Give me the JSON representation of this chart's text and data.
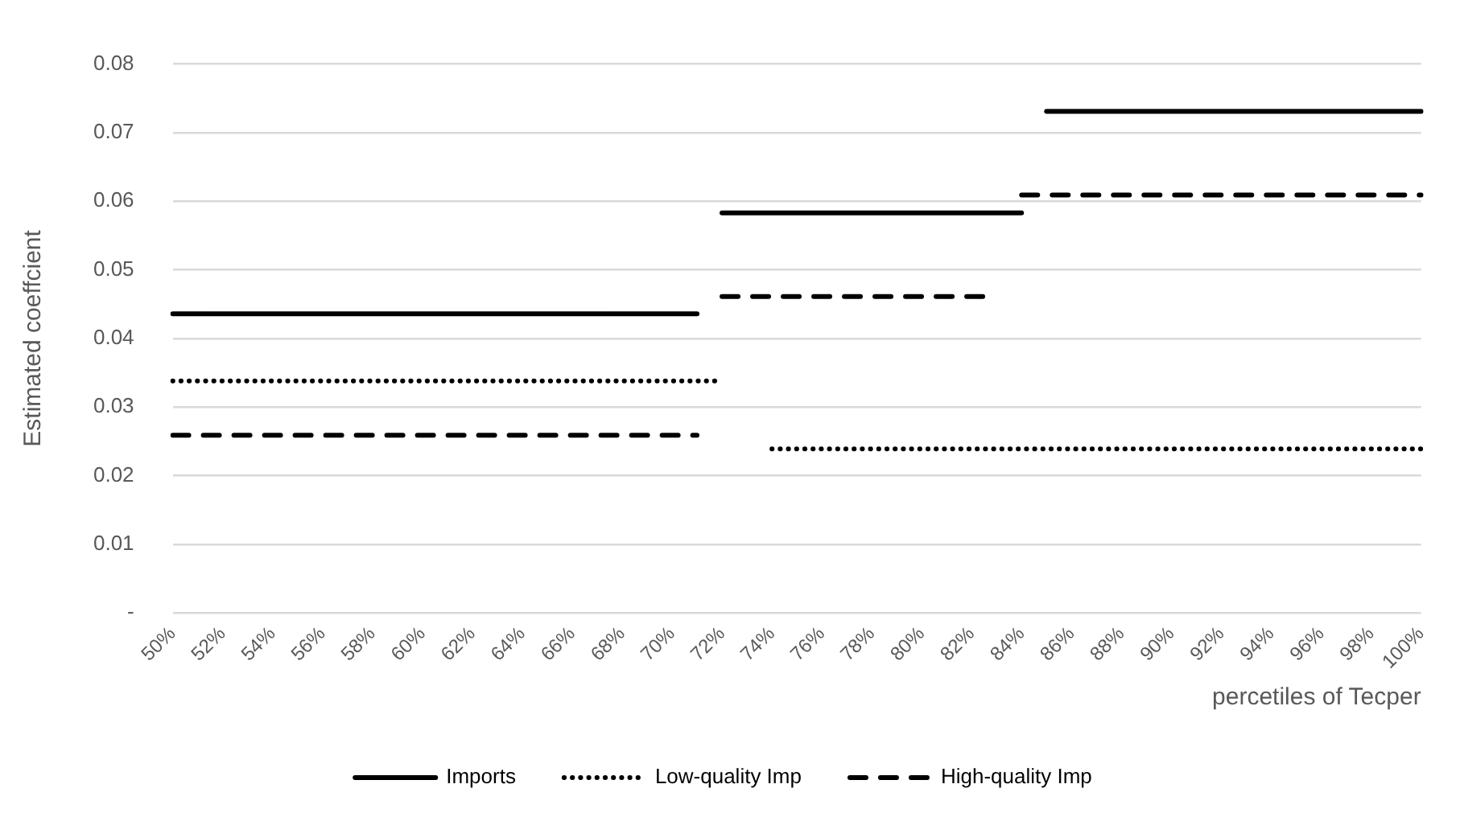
{
  "chart_data": {
    "type": "line",
    "xlabel": "percetiles of Tecper",
    "ylabel": "Estimated coeffcient",
    "categories": [
      "50%",
      null,
      "52%",
      null,
      "54%",
      null,
      "56%",
      null,
      "58%",
      null,
      "60%",
      null,
      "62%",
      null,
      "64%",
      null,
      "66%",
      null,
      "68%",
      null,
      "70%",
      null,
      "72%",
      null,
      "74%",
      null,
      "76%",
      null,
      "78%",
      null,
      "80%",
      null,
      "82%",
      null,
      "84%",
      null,
      "86%",
      null,
      "88%",
      null,
      "90%",
      null,
      "92%",
      null,
      "94%",
      null,
      "96%",
      null,
      "98%",
      null,
      "100%"
    ],
    "series": [
      {
        "name": "Imports",
        "color": "#000000",
        "line_style": "solid",
        "values": [
          0.0436,
          0.0436,
          0.0436,
          0.0436,
          0.0436,
          0.0436,
          0.0436,
          0.0436,
          0.0436,
          0.0436,
          0.0436,
          0.0436,
          0.0436,
          0.0436,
          0.0436,
          0.0436,
          0.0436,
          0.0436,
          0.0436,
          0.0436,
          0.0436,
          0.0436,
          0.0583,
          0.0583,
          0.0583,
          0.0583,
          0.0583,
          0.0583,
          0.0583,
          0.0583,
          0.0583,
          0.0583,
          0.0583,
          0.0583,
          0.0583,
          0.0731,
          0.0731,
          0.0731,
          0.0731,
          0.0731,
          0.0731,
          0.0731,
          0.0731,
          0.0731,
          0.0731,
          0.0731,
          0.0731,
          0.0731,
          0.0731,
          0.0731,
          0.0731
        ]
      },
      {
        "name": "Low-quality Imp",
        "color": "#000000",
        "line_style": "dotted",
        "values": [
          0.0338,
          0.0338,
          0.0338,
          0.0338,
          0.0338,
          0.0338,
          0.0338,
          0.0338,
          0.0338,
          0.0338,
          0.0338,
          0.0338,
          0.0338,
          0.0338,
          0.0338,
          0.0338,
          0.0338,
          0.0338,
          0.0338,
          0.0338,
          0.0338,
          0.0338,
          0.0338,
          null,
          0.0239,
          0.0239,
          0.0239,
          0.0239,
          0.0239,
          0.0239,
          0.0239,
          0.0239,
          0.0239,
          0.0239,
          0.0239,
          0.0239,
          0.0239,
          0.0239,
          0.0239,
          0.0239,
          0.0239,
          0.0239,
          0.0239,
          0.0239,
          0.0239,
          0.0239,
          0.0239,
          0.0239,
          0.0239,
          0.0239,
          0.0239
        ]
      },
      {
        "name": "High-quality Imp",
        "color": "#000000",
        "line_style": "dashed",
        "values": [
          0.0259,
          0.0259,
          0.0259,
          0.0259,
          0.0259,
          0.0259,
          0.0259,
          0.0259,
          0.0259,
          0.0259,
          0.0259,
          0.0259,
          0.0259,
          0.0259,
          0.0259,
          0.0259,
          0.0259,
          0.0259,
          0.0259,
          0.0259,
          0.0259,
          0.0259,
          0.0461,
          0.0461,
          0.0461,
          0.0461,
          0.0461,
          0.0461,
          0.0461,
          0.0461,
          0.0461,
          0.0461,
          0.0461,
          0.0461,
          0.0609,
          0.0609,
          0.0609,
          0.0609,
          0.0609,
          0.0609,
          0.0609,
          0.0609,
          0.0609,
          0.0609,
          0.0609,
          0.0609,
          0.0609,
          0.0609,
          0.0609,
          0.0609,
          0.0609
        ]
      }
    ],
    "ylim": [
      0,
      0.08
    ],
    "yticks": [
      {
        "value": 0,
        "label": "-"
      },
      0.01,
      0.02,
      0.03,
      0.04,
      0.05,
      0.06,
      0.07,
      0.08
    ],
    "grid": "y",
    "legend": "bottom",
    "marker": "none"
  }
}
